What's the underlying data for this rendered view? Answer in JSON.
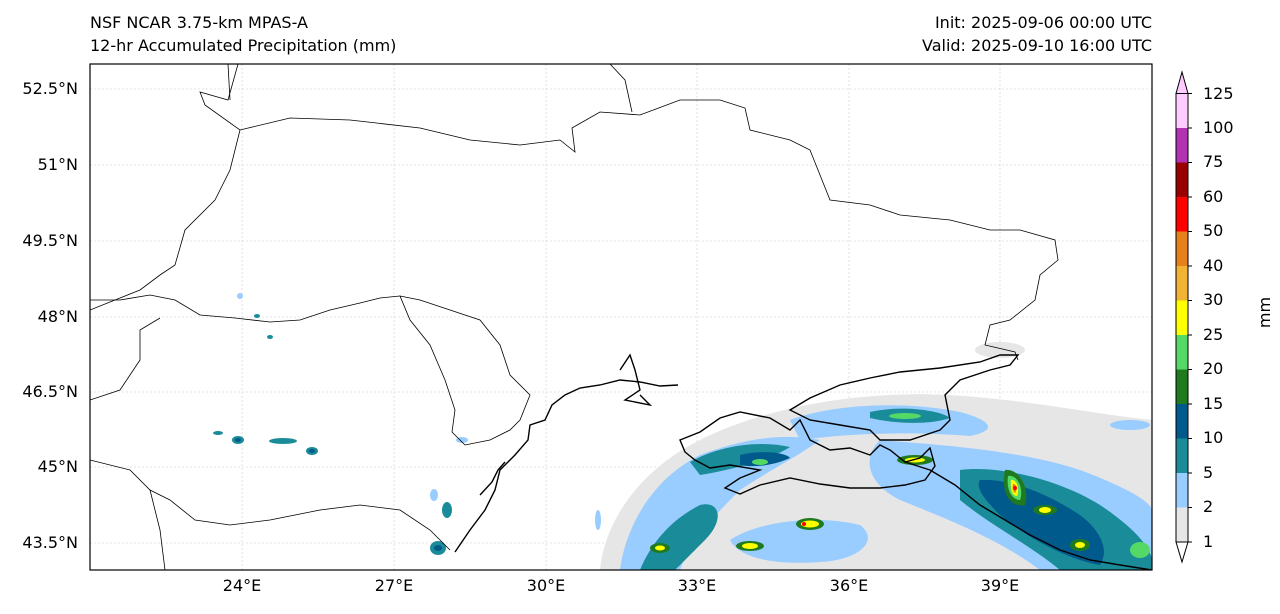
{
  "header": {
    "left_line1": "NSF NCAR 3.75-km MPAS-A",
    "left_line2": "12-hr Accumulated Precipitation (mm)",
    "right_line1": "Init: 2025-09-06 00:00 UTC",
    "right_line2": "Valid: 2025-09-10 16:00 UTC"
  },
  "map": {
    "lat_labels": [
      "52.5°N",
      "51°N",
      "49.5°N",
      "48°N",
      "46.5°N",
      "45°N",
      "43.5°N"
    ],
    "lon_labels": [
      "24°E",
      "27°E",
      "30°E",
      "33°E",
      "36°E",
      "39°E"
    ],
    "region": "Ukraine / Black Sea"
  },
  "colorbar": {
    "unit": "mm",
    "levels": [
      "1",
      "2",
      "5",
      "10",
      "15",
      "20",
      "25",
      "30",
      "40",
      "50",
      "60",
      "75",
      "100",
      "125"
    ],
    "colors": [
      "#e6e6e6",
      "#99ccff",
      "#1a8c99",
      "#005a8c",
      "#1f7a1f",
      "#55d966",
      "#ffff00",
      "#f2b233",
      "#e6801a",
      "#ff0000",
      "#990000",
      "#b233b2",
      "#ffccff"
    ]
  }
}
